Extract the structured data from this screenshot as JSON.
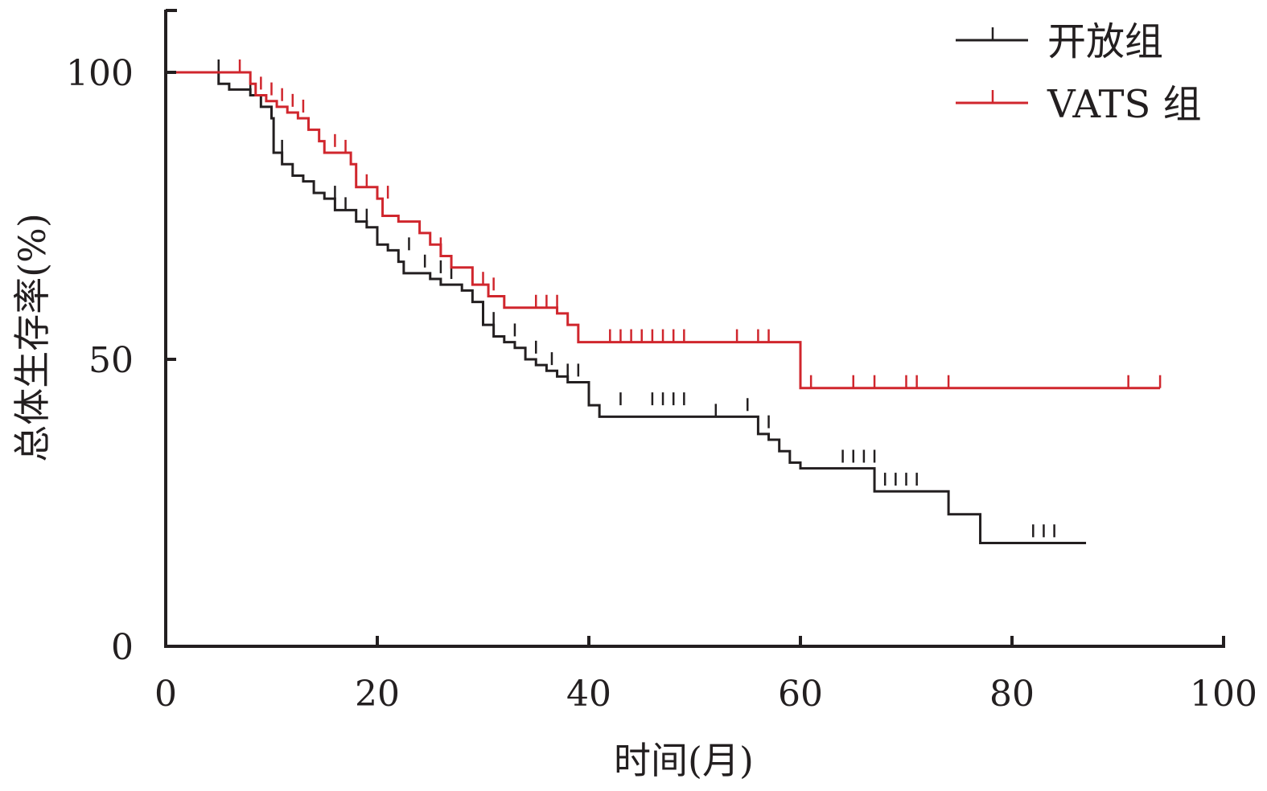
{
  "chart_data": {
    "type": "line",
    "step": true,
    "title": "",
    "xlabel": "时间(月)",
    "ylabel": "总体生存率(%)",
    "xlim": [
      0,
      100
    ],
    "ylim": [
      0,
      100
    ],
    "xticks": [
      "0",
      "20",
      "40",
      "60",
      "80",
      "100"
    ],
    "yticks": [
      "0",
      "50",
      "100"
    ],
    "legend_position": "top-right",
    "grid": false,
    "series": [
      {
        "name": "开放组",
        "color": "#231f20",
        "steps": [
          [
            0,
            100
          ],
          [
            5,
            98
          ],
          [
            6,
            97
          ],
          [
            8,
            96
          ],
          [
            9,
            94
          ],
          [
            10,
            92
          ],
          [
            10.2,
            86
          ],
          [
            11,
            84
          ],
          [
            12,
            82
          ],
          [
            13,
            81
          ],
          [
            14,
            79
          ],
          [
            15,
            78
          ],
          [
            16,
            76
          ],
          [
            18,
            74
          ],
          [
            19,
            73
          ],
          [
            20,
            70
          ],
          [
            21,
            69
          ],
          [
            22,
            67
          ],
          [
            22.5,
            65
          ],
          [
            25,
            64
          ],
          [
            26,
            63
          ],
          [
            28,
            62
          ],
          [
            29,
            60
          ],
          [
            30,
            56
          ],
          [
            31,
            54
          ],
          [
            32,
            53
          ],
          [
            33,
            52
          ],
          [
            34,
            50
          ],
          [
            35,
            49
          ],
          [
            36,
            48
          ],
          [
            37,
            47
          ],
          [
            38,
            46
          ],
          [
            40,
            42
          ],
          [
            41,
            40
          ],
          [
            55,
            40
          ],
          [
            56,
            37
          ],
          [
            57,
            36
          ],
          [
            58,
            34
          ],
          [
            59,
            32
          ],
          [
            60,
            31
          ],
          [
            67,
            27
          ],
          [
            74,
            23
          ],
          [
            77,
            18
          ],
          [
            87,
            18
          ]
        ],
        "censored": [
          [
            5,
            100
          ],
          [
            8,
            97
          ],
          [
            11,
            86
          ],
          [
            16,
            78
          ],
          [
            17,
            76
          ],
          [
            19,
            74
          ],
          [
            23,
            69
          ],
          [
            24.5,
            66
          ],
          [
            26,
            65
          ],
          [
            27,
            64
          ],
          [
            31,
            56
          ],
          [
            33,
            54
          ],
          [
            35,
            51
          ],
          [
            36.5,
            49
          ],
          [
            38,
            47
          ],
          [
            39,
            47
          ],
          [
            43,
            42
          ],
          [
            46,
            42
          ],
          [
            47,
            42
          ],
          [
            48,
            42
          ],
          [
            49,
            42
          ],
          [
            52,
            40
          ],
          [
            55,
            41
          ],
          [
            57,
            38
          ],
          [
            64,
            32
          ],
          [
            65,
            32
          ],
          [
            66,
            32
          ],
          [
            67,
            32
          ],
          [
            68,
            28
          ],
          [
            69,
            28
          ],
          [
            70,
            28
          ],
          [
            71,
            28
          ],
          [
            82,
            19
          ],
          [
            83,
            19
          ],
          [
            84,
            19
          ]
        ]
      },
      {
        "name": "VATS 组",
        "color": "#d0262d",
        "steps": [
          [
            0,
            100
          ],
          [
            8,
            98
          ],
          [
            8.5,
            96
          ],
          [
            9.5,
            95
          ],
          [
            10.5,
            94
          ],
          [
            11.5,
            93
          ],
          [
            12.5,
            92
          ],
          [
            13.5,
            90
          ],
          [
            14.5,
            88
          ],
          [
            15,
            86
          ],
          [
            17.5,
            84
          ],
          [
            18,
            80
          ],
          [
            20,
            78
          ],
          [
            20.5,
            75
          ],
          [
            22,
            74
          ],
          [
            24,
            72
          ],
          [
            25,
            70
          ],
          [
            26,
            68
          ],
          [
            27,
            66
          ],
          [
            29,
            63
          ],
          [
            30.5,
            61
          ],
          [
            32,
            59
          ],
          [
            37,
            58
          ],
          [
            38,
            56
          ],
          [
            39,
            53
          ],
          [
            60,
            53
          ],
          [
            60,
            45
          ],
          [
            94,
            45
          ]
        ],
        "censored": [
          [
            7,
            100
          ],
          [
            9,
            97
          ],
          [
            10,
            96
          ],
          [
            11,
            95
          ],
          [
            12,
            94
          ],
          [
            13,
            93
          ],
          [
            16,
            87
          ],
          [
            17,
            86
          ],
          [
            19,
            80
          ],
          [
            21,
            78
          ],
          [
            26,
            69
          ],
          [
            30,
            63
          ],
          [
            31,
            62
          ],
          [
            35,
            59
          ],
          [
            36,
            59
          ],
          [
            37,
            59
          ],
          [
            42,
            53
          ],
          [
            43,
            53
          ],
          [
            44,
            53
          ],
          [
            45,
            53
          ],
          [
            46,
            53
          ],
          [
            47,
            53
          ],
          [
            48,
            53
          ],
          [
            49,
            53
          ],
          [
            54,
            53
          ],
          [
            56,
            53
          ],
          [
            57,
            53
          ],
          [
            61,
            45
          ],
          [
            65,
            45
          ],
          [
            67,
            45
          ],
          [
            70,
            45
          ],
          [
            71,
            45
          ],
          [
            74,
            45
          ],
          [
            91,
            45
          ],
          [
            94,
            45
          ]
        ]
      }
    ]
  }
}
